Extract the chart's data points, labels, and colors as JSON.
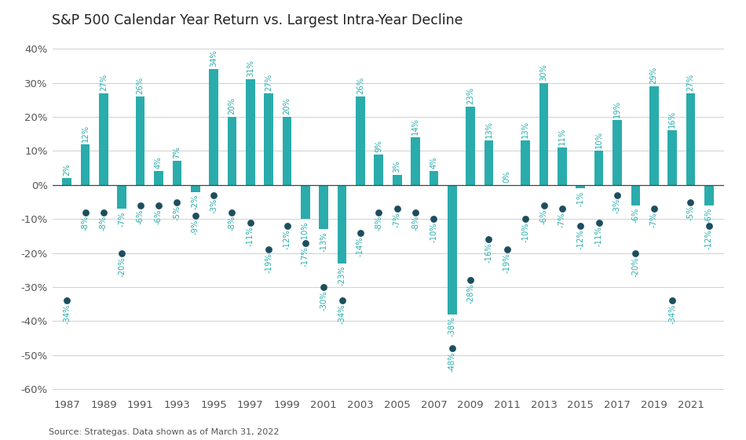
{
  "title": "S&P 500 Calendar Year Return vs. Largest Intra-Year Decline",
  "source": "Source: Strategas. Data shown as of March 31, 2022",
  "years": [
    1987,
    1988,
    1989,
    1990,
    1991,
    1992,
    1993,
    1994,
    1995,
    1996,
    1997,
    1998,
    1999,
    2000,
    2001,
    2002,
    2003,
    2004,
    2005,
    2006,
    2007,
    2008,
    2009,
    2010,
    2011,
    2012,
    2013,
    2014,
    2015,
    2016,
    2017,
    2018,
    2019,
    2020,
    2021,
    2022
  ],
  "calendar_returns": [
    2,
    12,
    27,
    -7,
    26,
    4,
    7,
    -2,
    34,
    20,
    31,
    27,
    20,
    -10,
    -13,
    -23,
    26,
    9,
    3,
    14,
    4,
    -38,
    23,
    13,
    0,
    13,
    30,
    11,
    -1,
    10,
    19,
    -6,
    29,
    16,
    27,
    -6
  ],
  "intra_year_declines": [
    -34,
    -8,
    -8,
    -20,
    -6,
    -6,
    -5,
    -9,
    -3,
    -8,
    -11,
    -19,
    -12,
    -17,
    -30,
    -34,
    -14,
    -8,
    -7,
    -8,
    -10,
    -48,
    -28,
    -16,
    -19,
    -10,
    -6,
    -7,
    -12,
    -11,
    -3,
    -20,
    -7,
    -34,
    -5,
    -12
  ],
  "bar_color": "#2aacac",
  "dot_color": "#1d4e5e",
  "label_color": "#2aacac",
  "bg_color": "#ffffff",
  "grid_color": "#d0d0d0",
  "text_color": "#555555",
  "ylim_min": -62,
  "ylim_max": 44,
  "yticks": [
    -60,
    -50,
    -40,
    -30,
    -20,
    -10,
    0,
    10,
    20,
    30,
    40
  ],
  "title_fontsize": 12.5,
  "axis_fontsize": 9.5,
  "label_fontsize": 7.2,
  "bar_width": 0.5
}
